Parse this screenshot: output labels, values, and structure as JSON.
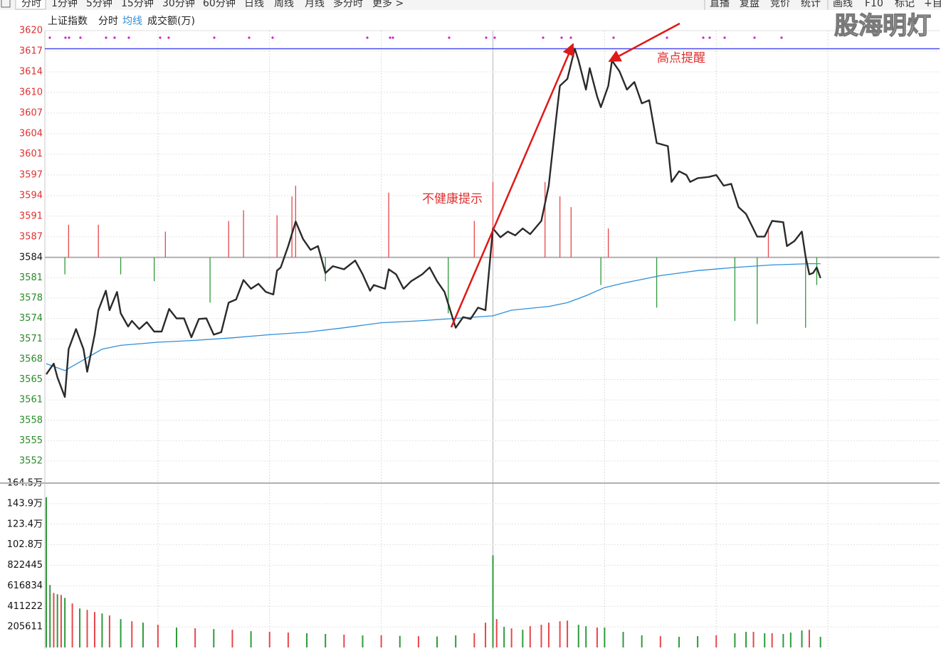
{
  "toolbar": {
    "left": [
      "分时",
      "1分钟",
      "5分钟",
      "15分钟",
      "30分钟",
      "60分钟",
      "日线",
      "周线",
      "月线",
      "多分时",
      "更多 >"
    ],
    "right": [
      "直播",
      "复盘",
      "竞价",
      "统计",
      "画线",
      "F10",
      "标记",
      "+自"
    ]
  },
  "watermark": "股海明灯",
  "chart_data": [
    {
      "type": "line",
      "title": "上证指数",
      "xlim": [
        0,
        240
      ],
      "ylim": [
        3551.7,
        3620.18
      ],
      "yticks": [
        {
          "value": 3620.18,
          "label": "3620"
        },
        {
          "value": 3616.9,
          "label": "3617"
        },
        {
          "value": 3613.62,
          "label": "3614"
        },
        {
          "value": 3610.34,
          "label": "3610"
        },
        {
          "value": 3607.06,
          "label": "3607"
        },
        {
          "value": 3603.78,
          "label": "3604"
        },
        {
          "value": 3600.52,
          "label": "3601"
        },
        {
          "value": 3597.22,
          "label": "3597"
        },
        {
          "value": 3593.94,
          "label": "3594"
        },
        {
          "value": 3590.66,
          "label": "3591"
        },
        {
          "value": 3587.38,
          "label": "3587"
        },
        {
          "value": 3584.1,
          "label": "3584"
        },
        {
          "value": 3580.86,
          "label": "3581"
        },
        {
          "value": 3577.62,
          "label": "3578"
        },
        {
          "value": 3574.38,
          "label": "3574"
        },
        {
          "value": 3571.14,
          "label": "3571"
        },
        {
          "value": 3567.9,
          "label": "3568"
        },
        {
          "value": 3564.66,
          "label": "3565"
        },
        {
          "value": 3561.42,
          "label": "3561"
        },
        {
          "value": 3558.18,
          "label": "3558"
        },
        {
          "value": 3554.94,
          "label": "3555"
        },
        {
          "value": 3551.7,
          "label": "3552"
        }
      ],
      "grid": true,
      "up_color": "#e8464a",
      "down_color": "#2e9a3a",
      "high_line_color": "#4b4bf0",
      "series": [
        {
          "name": "分时",
          "color": "#2a2a2a",
          "x": [
            0,
            2,
            3,
            5,
            6,
            8,
            10,
            11,
            13,
            14,
            16,
            17,
            19,
            20,
            22,
            23,
            25,
            27,
            29,
            31,
            33,
            35,
            37,
            39,
            41,
            43,
            45,
            47,
            49,
            51,
            53,
            55,
            57,
            59,
            61,
            62,
            63,
            65,
            67,
            69,
            71,
            73,
            75,
            77,
            80,
            83,
            85,
            87,
            88,
            91,
            92,
            94,
            96,
            98,
            101,
            103,
            105,
            107,
            110,
            112,
            114,
            116,
            118,
            120,
            122,
            124,
            126,
            128,
            130,
            133,
            135,
            137,
            138,
            140,
            142,
            143,
            145,
            146,
            148,
            149,
            151,
            152,
            154,
            156,
            158,
            160,
            162,
            164,
            167,
            168,
            170,
            172,
            173,
            175,
            178,
            180,
            182,
            184,
            186,
            188,
            191,
            193,
            195,
            198,
            199,
            201,
            203,
            204,
            205,
            206,
            207,
            208
          ],
          "values": [
            3565.5,
            3567.2,
            3565.0,
            3561.9,
            3569.5,
            3572.7,
            3569.5,
            3565.9,
            3571.8,
            3575.7,
            3578.8,
            3575.7,
            3578.6,
            3575.2,
            3573.1,
            3574.0,
            3572.7,
            3573.8,
            3572.3,
            3572.3,
            3575.9,
            3574.4,
            3574.4,
            3571.4,
            3574.3,
            3574.4,
            3571.8,
            3572.2,
            3576.9,
            3577.4,
            3580.5,
            3579.1,
            3579.9,
            3578.6,
            3578.2,
            3582.0,
            3582.5,
            3585.9,
            3589.8,
            3587.0,
            3585.3,
            3585.9,
            3581.6,
            3582.7,
            3582.2,
            3583.6,
            3581.4,
            3578.8,
            3579.7,
            3579.1,
            3582.2,
            3581.4,
            3579.1,
            3580.3,
            3581.4,
            3582.5,
            3580.3,
            3578.6,
            3572.9,
            3574.6,
            3574.3,
            3576.1,
            3575.7,
            3588.7,
            3587.3,
            3588.2,
            3587.6,
            3588.7,
            3587.8,
            3589.9,
            3595.5,
            3606.3,
            3611.4,
            3612.5,
            3617.3,
            3615.4,
            3610.8,
            3614.2,
            3609.7,
            3608.0,
            3611.4,
            3615.4,
            3613.7,
            3610.8,
            3612.0,
            3608.6,
            3609.1,
            3602.3,
            3601.8,
            3596.1,
            3597.8,
            3597.2,
            3596.1,
            3596.7,
            3596.9,
            3597.2,
            3595.5,
            3595.8,
            3592.1,
            3591.0,
            3587.4,
            3587.4,
            3589.9,
            3589.7,
            3585.9,
            3586.7,
            3588.2,
            3584.2,
            3581.4,
            3581.6,
            3582.5,
            3580.8
          ]
        },
        {
          "name": "均线",
          "color": "#2f8fd8",
          "x": [
            0,
            5,
            10,
            15,
            20,
            30,
            40,
            50,
            60,
            70,
            80,
            90,
            100,
            110,
            120,
            125,
            135,
            140,
            145,
            150,
            155,
            160,
            165,
            175,
            185,
            195,
            205,
            208
          ],
          "values": [
            3567.2,
            3566.1,
            3567.8,
            3569.5,
            3570.1,
            3570.6,
            3570.9,
            3571.3,
            3571.8,
            3572.2,
            3572.9,
            3573.7,
            3574.0,
            3574.4,
            3574.8,
            3575.7,
            3576.3,
            3576.9,
            3578.0,
            3579.3,
            3580.0,
            3580.6,
            3581.2,
            3582.0,
            3582.5,
            3582.9,
            3583.1,
            3583.1
          ]
        }
      ],
      "breadth": {
        "x": [
          6,
          14,
          32,
          49,
          53,
          62,
          66,
          67,
          92,
          115,
          120,
          134,
          138,
          141,
          151,
          194,
          5,
          20,
          29,
          44,
          75,
          108,
          149,
          164,
          185,
          191,
          204,
          207
        ],
        "values": [
          3589.3,
          3589.3,
          3588.2,
          3589.9,
          3591.6,
          3590.8,
          3593.8,
          3595.5,
          3594.4,
          3589.9,
          3596.1,
          3596.1,
          3593.8,
          3592.1,
          3588.7,
          3588.7,
          3581.4,
          3581.4,
          3580.3,
          3576.9,
          3580.3,
          3575.2,
          3579.7,
          3576.1,
          3574.0,
          3573.5,
          3572.9,
          3579.7
        ]
      },
      "annotations": [
        "不健康提示",
        "高点提醒"
      ]
    },
    {
      "type": "bar",
      "title": "成交额(万)",
      "xlim": [
        0,
        240
      ],
      "ylim": [
        0,
        1644888
      ],
      "yticks": [
        {
          "value": 1644888,
          "label": "164.5万"
        },
        {
          "value": 1439277,
          "label": "143.9万"
        },
        {
          "value": 1233666,
          "label": "123.4万"
        },
        {
          "value": 1028055,
          "label": "102.8万"
        },
        822445,
        616834,
        411222,
        205611
      ],
      "x": [
        0,
        1,
        2,
        3,
        4,
        5,
        7,
        9,
        11,
        13,
        15,
        17,
        20,
        23,
        26,
        30,
        35,
        40,
        45,
        50,
        55,
        60,
        65,
        70,
        75,
        80,
        85,
        90,
        95,
        100,
        105,
        110,
        115,
        118,
        120,
        121,
        123,
        125,
        128,
        130,
        133,
        135,
        138,
        140,
        143,
        145,
        148,
        150,
        155,
        160,
        165,
        170,
        175,
        180,
        185,
        188,
        190,
        193,
        195,
        198,
        200,
        203,
        205,
        208
      ],
      "values": [
        1503000,
        624000,
        546000,
        532000,
        525000,
        496000,
        440000,
        390000,
        376000,
        355000,
        340000,
        320000,
        284000,
        262000,
        248000,
        227000,
        199000,
        192000,
        184000,
        177000,
        163000,
        156000,
        149000,
        142000,
        135000,
        128000,
        120000,
        121000,
        116000,
        113000,
        110000,
        121000,
        142000,
        248000,
        922000,
        284000,
        206000,
        191000,
        177000,
        213000,
        227000,
        248000,
        262000,
        269000,
        227000,
        213000,
        199000,
        199000,
        156000,
        121000,
        113000,
        106000,
        113000,
        121000,
        142000,
        156000,
        156000,
        142000,
        142000,
        135000,
        149000,
        170000,
        177000,
        106000
      ],
      "colors": [
        "#2e9a3a",
        "#2e9a3a",
        "#e8464a",
        "#2e9a3a",
        "#e8464a",
        "#2e9a3a",
        "#e8464a",
        "#2e9a3a",
        "#e8464a",
        "#e8464a",
        "#2e9a3a",
        "#e8464a",
        "#2e9a3a",
        "#e8464a",
        "#2e9a3a",
        "#e8464a",
        "#2e9a3a",
        "#e8464a",
        "#2e9a3a",
        "#e8464a",
        "#2e9a3a",
        "#e8464a",
        "#e8464a",
        "#2e9a3a",
        "#2e9a3a",
        "#e8464a",
        "#2e9a3a",
        "#e8464a",
        "#2e9a3a",
        "#e8464a",
        "#2e9a3a",
        "#2e9a3a",
        "#e8464a",
        "#e8464a",
        "#2e9a3a",
        "#e8464a",
        "#2e9a3a",
        "#e8464a",
        "#2e9a3a",
        "#e8464a",
        "#e8464a",
        "#e8464a",
        "#e8464a",
        "#e8464a",
        "#2e9a3a",
        "#2e9a3a",
        "#e8464a",
        "#2e9a3a",
        "#2e9a3a",
        "#2e9a3a",
        "#e8464a",
        "#2e9a3a",
        "#2e9a3a",
        "#e8464a",
        "#2e9a3a",
        "#2e9a3a",
        "#e8464a",
        "#2e9a3a",
        "#e8464a",
        "#2e9a3a",
        "#2e9a3a",
        "#2e9a3a",
        "#e8464a",
        "#2e9a3a"
      ]
    }
  ]
}
